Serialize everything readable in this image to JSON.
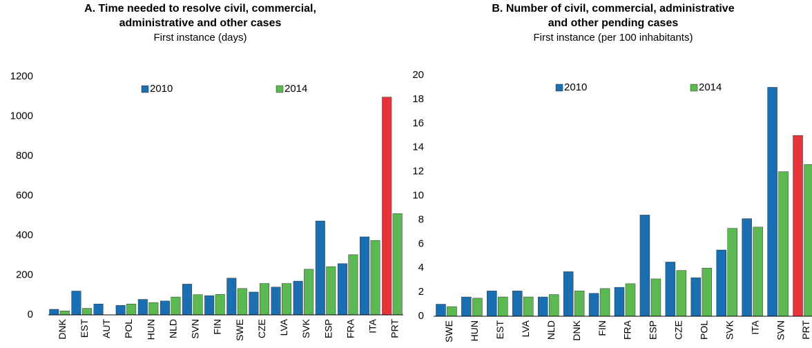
{
  "chart_data": [
    {
      "type": "bar",
      "title": [
        "A. Time needed to resolve civil, commercial,",
        "administrative and other cases"
      ],
      "subtitle": "First instance (days)",
      "categories": [
        "DNK",
        "EST",
        "AUT",
        "POL",
        "HUN",
        "NLD",
        "SVN",
        "FIN",
        "SWE",
        "CZE",
        "LVA",
        "SVK",
        "ESP",
        "FRA",
        "ITA",
        "PRT"
      ],
      "series": [
        {
          "name": "2010",
          "color": "#1a6fb3",
          "point_colors": [
            "#1a6fb3",
            "#1a6fb3",
            "#1a6fb3",
            "#1a6fb3",
            "#1a6fb3",
            "#1a6fb3",
            "#1a6fb3",
            "#1a6fb3",
            "#1a6fb3",
            "#1a6fb3",
            "#1a6fb3",
            "#1a6fb3",
            "#1a6fb3",
            "#1a6fb3",
            "#1a6fb3",
            "#e8333a"
          ],
          "values": [
            28,
            120,
            55,
            48,
            78,
            70,
            155,
            97,
            185,
            115,
            140,
            170,
            473,
            258,
            393,
            1097
          ]
        },
        {
          "name": "2014",
          "color": "#5cb850",
          "values": [
            20,
            33,
            null,
            55,
            62,
            90,
            102,
            103,
            133,
            158,
            158,
            230,
            243,
            303,
            375,
            510
          ]
        }
      ],
      "ylim": [
        0,
        1200
      ],
      "yticks": [
        0,
        200,
        400,
        600,
        800,
        1000,
        1200
      ],
      "grid": false
    },
    {
      "type": "bar",
      "title": [
        "B. Number of civil, commercial, administrative",
        "and other pending cases"
      ],
      "subtitle": "First instance (per 100 inhabitants)",
      "categories": [
        "SWE",
        "HUN",
        "EST",
        "LVA",
        "NLD",
        "DNK",
        "FIN",
        "FRA",
        "ESP",
        "CZE",
        "POL",
        "SVK",
        "ITA",
        "SVN",
        "PRT"
      ],
      "series": [
        {
          "name": "2010",
          "color": "#1a6fb3",
          "point_colors": [
            "#1a6fb3",
            "#1a6fb3",
            "#1a6fb3",
            "#1a6fb3",
            "#1a6fb3",
            "#1a6fb3",
            "#1a6fb3",
            "#1a6fb3",
            "#1a6fb3",
            "#1a6fb3",
            "#1a6fb3",
            "#1a6fb3",
            "#1a6fb3",
            "#1a6fb3",
            "#e8333a"
          ],
          "values": [
            1.0,
            1.6,
            2.1,
            2.1,
            1.6,
            3.7,
            1.9,
            2.4,
            8.4,
            4.5,
            3.2,
            5.5,
            8.1,
            19.0,
            15.0
          ]
        },
        {
          "name": "2014",
          "color": "#5cb850",
          "values": [
            0.8,
            1.5,
            1.6,
            1.6,
            1.8,
            2.1,
            2.3,
            2.7,
            3.1,
            3.8,
            4.0,
            7.3,
            7.4,
            12.0,
            12.6
          ]
        }
      ],
      "ylim": [
        0,
        20
      ],
      "yticks": [
        0,
        2,
        4,
        6,
        8,
        10,
        12,
        14,
        16,
        18,
        20
      ],
      "grid": false
    }
  ]
}
